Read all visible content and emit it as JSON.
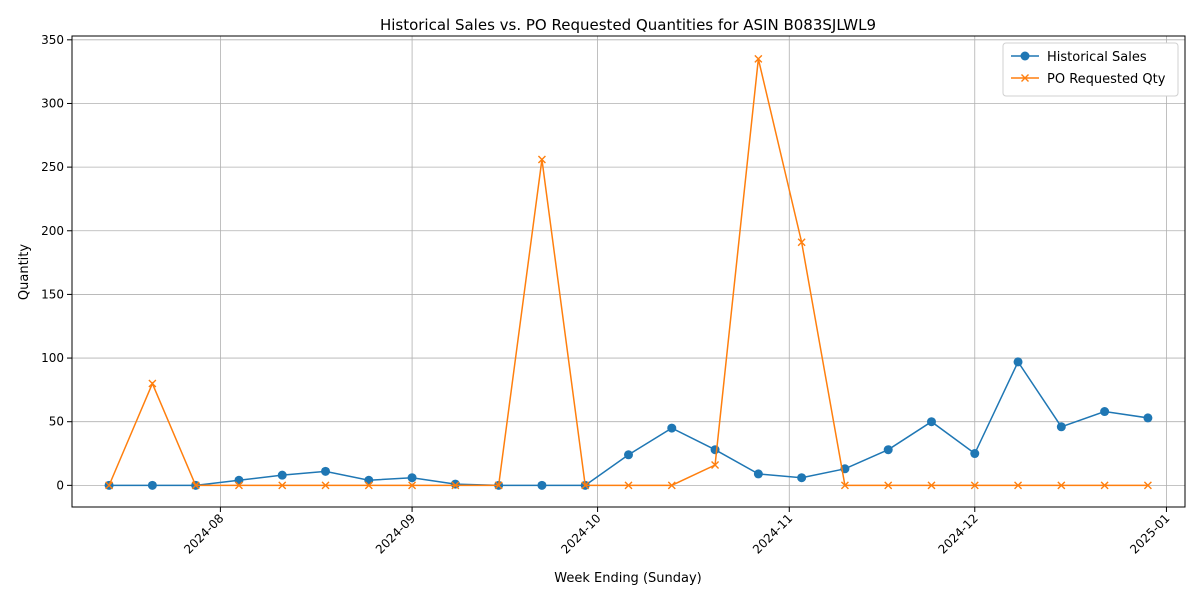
{
  "chart_data": {
    "type": "line",
    "title": "Historical Sales vs. PO Requested Quantities for ASIN B083SJLWL9",
    "xlabel": "Week Ending (Sunday)",
    "ylabel": "Quantity",
    "x": [
      "2024-07-14",
      "2024-07-21",
      "2024-07-28",
      "2024-08-04",
      "2024-08-11",
      "2024-08-18",
      "2024-08-25",
      "2024-09-01",
      "2024-09-08",
      "2024-09-15",
      "2024-09-22",
      "2024-09-29",
      "2024-10-06",
      "2024-10-13",
      "2024-10-20",
      "2024-10-27",
      "2024-11-03",
      "2024-11-10",
      "2024-11-17",
      "2024-11-24",
      "2024-12-01",
      "2024-12-08",
      "2024-12-15",
      "2024-12-22",
      "2024-12-29"
    ],
    "xlim": [
      "2024-07-08",
      "2025-01-04"
    ],
    "x_ticks": [
      "2024-08-01",
      "2024-09-01",
      "2024-10-01",
      "2024-11-01",
      "2024-12-01",
      "2025-01-01"
    ],
    "x_tick_labels": [
      "2024-08",
      "2024-09",
      "2024-10",
      "2024-11",
      "2024-12",
      "2025-01"
    ],
    "ylim": [
      -17,
      353
    ],
    "y_ticks": [
      0,
      50,
      100,
      150,
      200,
      250,
      300,
      350
    ],
    "grid": true,
    "legend_position": "top-right",
    "series": [
      {
        "name": "Historical Sales",
        "color": "#1f77b4",
        "marker": "circle",
        "values": [
          0,
          0,
          0,
          4,
          8,
          11,
          4,
          6,
          1,
          0,
          0,
          0,
          24,
          45,
          28,
          9,
          6,
          13,
          28,
          50,
          25,
          97,
          46,
          58,
          53
        ]
      },
      {
        "name": "PO Requested Qty",
        "color": "#ff7f0e",
        "marker": "x",
        "values": [
          0,
          80,
          0,
          0,
          0,
          0,
          0,
          0,
          0,
          0,
          256,
          0,
          0,
          0,
          16,
          335,
          191,
          0,
          0,
          0,
          0,
          0,
          0,
          0,
          0
        ]
      }
    ]
  }
}
